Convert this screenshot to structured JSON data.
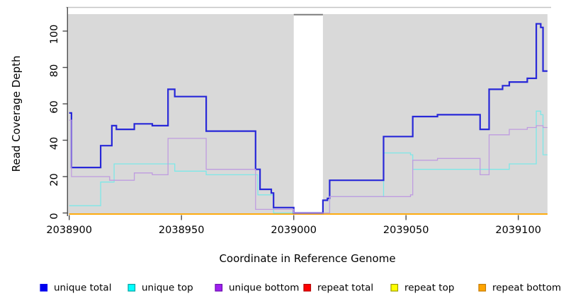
{
  "chart_data": {
    "type": "line",
    "step": true,
    "title": "",
    "xlabel": "Coordinate in Reference Genome",
    "ylabel": "Read Coverage Depth",
    "xlim": [
      2038900,
      2039113
    ],
    "ylim": [
      0,
      109
    ],
    "x_ticks": [
      2038900,
      2038950,
      2039000,
      2039050,
      2039100
    ],
    "y_ticks": [
      0,
      20,
      40,
      60,
      80,
      100
    ],
    "grid": false,
    "legend_position": "bottom",
    "panel_background": "#d9d9d9",
    "masked_region": {
      "from": 2039000,
      "to": 2039013
    },
    "series": [
      {
        "name": "repeat total",
        "color": "#ff0000",
        "width": 1.4,
        "steps": [
          [
            2038900,
            0
          ]
        ],
        "end": 2039113
      },
      {
        "name": "repeat top",
        "color": "#ffff00",
        "width": 1.4,
        "steps": [
          [
            2038900,
            0
          ]
        ],
        "end": 2039113
      },
      {
        "name": "repeat bottom",
        "color": "#ffa500",
        "width": 1.6,
        "steps": [
          [
            2038900,
            0
          ]
        ],
        "end": 2039113
      },
      {
        "name": "unique top",
        "color": "#7de8e8",
        "width": 1.3,
        "steps": [
          [
            2038900,
            4
          ],
          [
            2038914,
            17
          ],
          [
            2038920,
            27
          ],
          [
            2038947,
            23
          ],
          [
            2038961,
            21
          ],
          [
            2038984,
            10
          ],
          [
            2038991,
            0
          ],
          [
            2039016,
            9
          ],
          [
            2039040,
            33
          ],
          [
            2039052,
            32
          ],
          [
            2039053,
            24
          ],
          [
            2039096,
            27
          ],
          [
            2039108,
            56
          ],
          [
            2039110,
            54
          ],
          [
            2039111,
            32
          ]
        ],
        "end": 2039113
      },
      {
        "name": "unique total",
        "color": "#2828d8",
        "width": 2.2,
        "steps": [
          [
            2038900,
            55
          ],
          [
            2038901,
            25
          ],
          [
            2038914,
            37
          ],
          [
            2038919,
            48
          ],
          [
            2038921,
            46
          ],
          [
            2038929,
            49
          ],
          [
            2038937,
            48
          ],
          [
            2038944,
            68
          ],
          [
            2038947,
            64
          ],
          [
            2038961,
            45
          ],
          [
            2038983,
            24
          ],
          [
            2038985,
            13
          ],
          [
            2038990,
            11
          ],
          [
            2038991,
            3
          ],
          [
            2039000,
            0
          ],
          [
            2039013,
            7
          ],
          [
            2039015,
            8
          ],
          [
            2039016,
            18
          ],
          [
            2039040,
            42
          ],
          [
            2039053,
            53
          ],
          [
            2039064,
            54
          ],
          [
            2039083,
            46
          ],
          [
            2039087,
            68
          ],
          [
            2039093,
            70
          ],
          [
            2039096,
            72
          ],
          [
            2039104,
            74
          ],
          [
            2039108,
            104
          ],
          [
            2039110,
            102
          ],
          [
            2039111,
            78
          ]
        ],
        "end": 2039113
      },
      {
        "name": "unique bottom",
        "color": "#bf9ce0",
        "width": 1.3,
        "steps": [
          [
            2038900,
            51
          ],
          [
            2038901,
            20
          ],
          [
            2038918,
            18
          ],
          [
            2038929,
            22
          ],
          [
            2038937,
            21
          ],
          [
            2038944,
            41
          ],
          [
            2038961,
            24
          ],
          [
            2038983,
            2
          ],
          [
            2039000,
            0
          ],
          [
            2039016,
            9
          ],
          [
            2039052,
            10
          ],
          [
            2039053,
            29
          ],
          [
            2039064,
            30
          ],
          [
            2039083,
            21
          ],
          [
            2039087,
            43
          ],
          [
            2039096,
            46
          ],
          [
            2039104,
            47
          ],
          [
            2039108,
            48
          ],
          [
            2039111,
            47
          ]
        ],
        "end": 2039113
      }
    ]
  },
  "legend": {
    "items": [
      {
        "label": "unique total",
        "fill": "#0000ee",
        "border": "#0000ee"
      },
      {
        "label": "unique top",
        "fill": "#00ffff",
        "border": "#00a3a3"
      },
      {
        "label": "unique bottom",
        "fill": "#a020f0",
        "border": "#6a0dad"
      },
      {
        "label": "repeat total",
        "fill": "#ff0000",
        "border": "#b30000"
      },
      {
        "label": "repeat top",
        "fill": "#ffff00",
        "border": "#9c9c00"
      },
      {
        "label": "repeat bottom",
        "fill": "#ffa500",
        "border": "#c47a00"
      }
    ]
  },
  "colors": {
    "panel_bg": "#d9d9d9",
    "mask_bg": "#ffffff",
    "mask_top_edge": "#7d7d7d",
    "top_hairline": "#c4c4c4",
    "axis_line": "#4d4d4d",
    "tick_color": "#4d4d4d"
  }
}
